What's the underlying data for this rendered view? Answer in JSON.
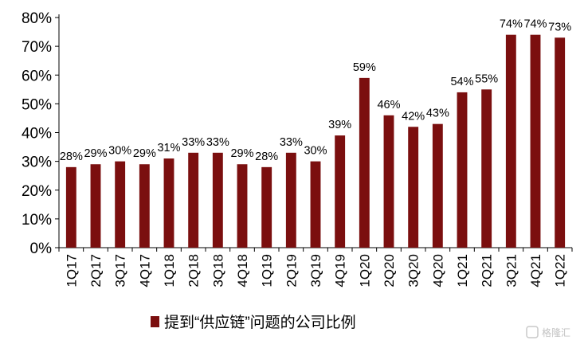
{
  "chart_data": {
    "type": "bar",
    "title": "",
    "xlabel": "",
    "ylabel": "",
    "categories": [
      "1Q17",
      "2Q17",
      "3Q17",
      "4Q17",
      "1Q18",
      "2Q18",
      "3Q18",
      "4Q18",
      "1Q19",
      "2Q19",
      "3Q19",
      "4Q19",
      "1Q20",
      "2Q20",
      "3Q20",
      "4Q20",
      "1Q21",
      "2Q21",
      "3Q21",
      "4Q21",
      "1Q22"
    ],
    "series": [
      {
        "name": "提到“供应链”问题的公司比例",
        "values": [
          28,
          29,
          30,
          29,
          31,
          33,
          33,
          29,
          28,
          33,
          30,
          39,
          59,
          46,
          42,
          43,
          54,
          55,
          74,
          74,
          73
        ],
        "data_labels": [
          "28%",
          "29%",
          "30%",
          "29%",
          "31%",
          "33%",
          "33%",
          "29%",
          "28%",
          "33%",
          "30%",
          "39%",
          "59%",
          "46%",
          "42%",
          "43%",
          "54%",
          "55%",
          "74%",
          "74%",
          "73%"
        ],
        "color": "#7b0f0f"
      }
    ],
    "ylim": [
      0,
      80
    ],
    "yticks": [
      0,
      10,
      20,
      30,
      40,
      50,
      60,
      70,
      80
    ],
    "ytick_labels": [
      "0%",
      "10%",
      "20%",
      "30%",
      "40%",
      "50%",
      "60%",
      "70%",
      "80%"
    ],
    "grid": false,
    "legend": {
      "position": "bottom-center"
    }
  },
  "watermark": {
    "icon": "gelonghui-logo-icon",
    "text": "格隆汇"
  }
}
